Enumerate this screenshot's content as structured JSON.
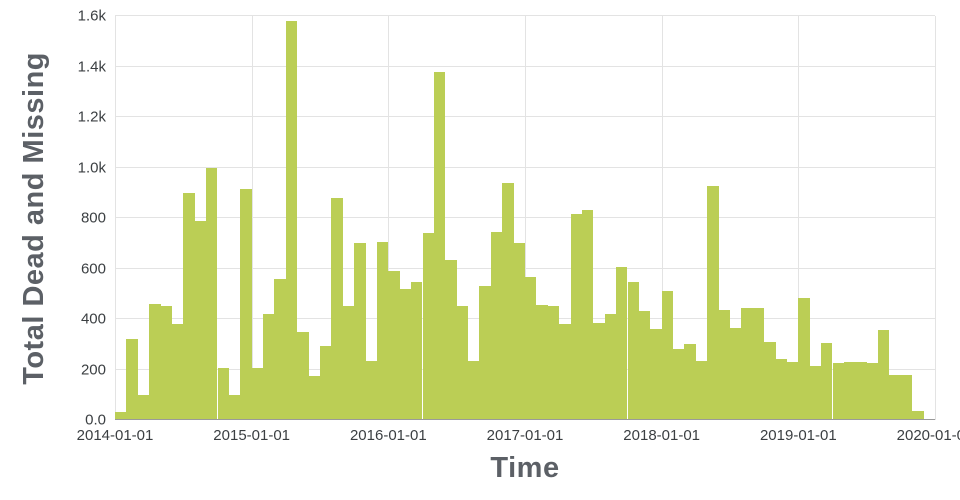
{
  "chart": {
    "background": "#ffffff",
    "colors": {
      "bar": "#bbce55",
      "grid": "#e3e3e3",
      "axis_line": "#9a9a9a",
      "tick_label": "#3b3f42",
      "axis_title": "#5c6066"
    }
  },
  "chart_data": {
    "type": "bar",
    "title": "",
    "xlabel": "Time",
    "ylabel": "Total Dead and Missing",
    "ylim": [
      0,
      1600
    ],
    "xlim": [
      "2014-01-01",
      "2020-01-01"
    ],
    "grid": true,
    "legend": false,
    "x_axis_span_months": 72,
    "y_tick_values": [
      0,
      200,
      400,
      600,
      800,
      1000,
      1200,
      1400,
      1600
    ],
    "y_tick_labels": [
      "0.0",
      "200",
      "400",
      "600",
      "800",
      "1.0k",
      "1.2k",
      "1.4k",
      "1.6k"
    ],
    "x_tick_month_offsets": [
      0,
      12,
      24,
      36,
      48,
      60,
      72
    ],
    "x_tick_labels": [
      "2014-01-01",
      "2015-01-01",
      "2016-01-01",
      "2017-01-01",
      "2018-01-01",
      "2019-01-01",
      "2020-01-01"
    ],
    "x": [
      "2014-01",
      "2014-02",
      "2014-03",
      "2014-04",
      "2014-05",
      "2014-06",
      "2014-07",
      "2014-08",
      "2014-09",
      "2014-10",
      "2014-11",
      "2014-12",
      "2015-01",
      "2015-02",
      "2015-03",
      "2015-04",
      "2015-05",
      "2015-06",
      "2015-07",
      "2015-08",
      "2015-09",
      "2015-10",
      "2015-11",
      "2015-12",
      "2016-01",
      "2016-02",
      "2016-03",
      "2016-04",
      "2016-05",
      "2016-06",
      "2016-07",
      "2016-08",
      "2016-09",
      "2016-10",
      "2016-11",
      "2016-12",
      "2017-01",
      "2017-02",
      "2017-03",
      "2017-04",
      "2017-05",
      "2017-06",
      "2017-07",
      "2017-08",
      "2017-09",
      "2017-10",
      "2017-11",
      "2017-12",
      "2018-01",
      "2018-02",
      "2018-03",
      "2018-04",
      "2018-05",
      "2018-06",
      "2018-07",
      "2018-08",
      "2018-09",
      "2018-10",
      "2018-11",
      "2018-12",
      "2019-01",
      "2019-02",
      "2019-03",
      "2019-04",
      "2019-05",
      "2019-06",
      "2019-07",
      "2019-08",
      "2019-09",
      "2019-10",
      "2019-11"
    ],
    "values": [
      30,
      320,
      100,
      460,
      450,
      380,
      900,
      790,
      1000,
      205,
      100,
      915,
      205,
      420,
      560,
      1580,
      350,
      175,
      295,
      880,
      450,
      700,
      235,
      705,
      590,
      520,
      545,
      740,
      1380,
      635,
      450,
      235,
      530,
      745,
      940,
      700,
      565,
      455,
      450,
      380,
      815,
      830,
      385,
      420,
      605,
      545,
      430,
      360,
      510,
      280,
      300,
      235,
      925,
      435,
      365,
      445,
      445,
      310,
      240,
      230,
      485,
      215,
      305,
      225,
      230,
      230,
      225,
      355,
      180,
      180,
      35
    ]
  }
}
